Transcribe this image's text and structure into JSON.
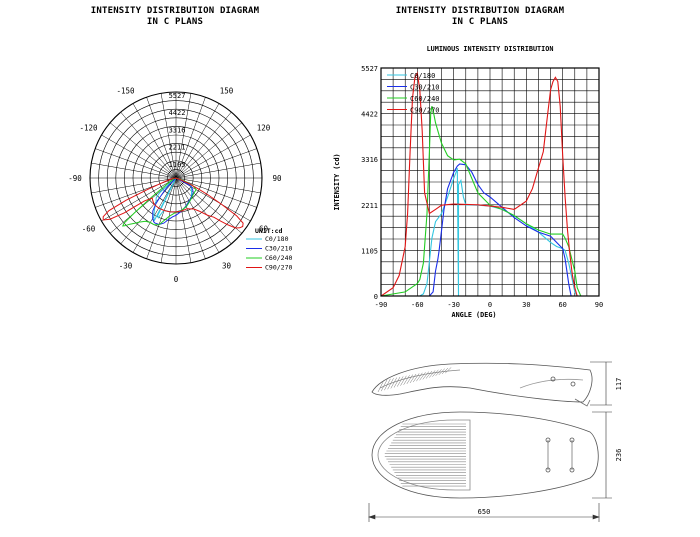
{
  "left_panel": {
    "title_line1": "INTENSITY DISTRIBUTION DIAGRAM",
    "title_line2": "IN C PLANS"
  },
  "right_panel": {
    "title_line1": "INTENSITY DISTRIBUTION DIAGRAM",
    "title_line2": "IN C PLANS"
  },
  "chart_data": [
    {
      "type": "polar",
      "unit_label": "UNIT:cd",
      "radial_ticks": [
        "5527",
        "4422",
        "3316",
        "2211",
        "1105"
      ],
      "radial_values": [
        5527,
        4422,
        3316,
        2211,
        1105
      ],
      "radial_max": 5527,
      "angle_labels": [
        {
          "text": "-150",
          "deg": -150
        },
        {
          "text": "150",
          "deg": 150
        },
        {
          "text": "-120",
          "deg": -120
        },
        {
          "text": "120",
          "deg": 120
        },
        {
          "text": "-90",
          "deg": -90
        },
        {
          "text": "90",
          "deg": 90
        },
        {
          "text": "-60",
          "deg": -60
        },
        {
          "text": "60",
          "deg": 60
        },
        {
          "text": "-30",
          "deg": -30
        },
        {
          "text": "30",
          "deg": 30
        },
        {
          "text": "0",
          "deg": 0
        }
      ],
      "legend": [
        {
          "name": "C0/180",
          "color": "#33c6e0"
        },
        {
          "name": "C30/210",
          "color": "#1a2ee8"
        },
        {
          "name": "C60/240",
          "color": "#22cc22"
        },
        {
          "name": "C90/270",
          "color": "#e01515"
        }
      ]
    },
    {
      "type": "line",
      "title": "LUMINOUS INTENSITY DISTRIBUTION",
      "xlabel": "ANGLE (DEG)",
      "ylabel": "INTENSITY (cd)",
      "xlim": [
        -90,
        90
      ],
      "ylim": [
        0,
        5527
      ],
      "xticks": [
        -90,
        -60,
        -30,
        0,
        30,
        60,
        90
      ],
      "yticks": [
        0,
        1105,
        2211,
        3316,
        4422,
        5527
      ],
      "grid": true,
      "legend_position": "top-left",
      "series": [
        {
          "name": "C0/180",
          "color": "#33c6e0",
          "points": [
            [
              -90,
              0
            ],
            [
              -58,
              0
            ],
            [
              -55,
              50
            ],
            [
              -52,
              300
            ],
            [
              -48,
              1400
            ],
            [
              -45,
              1800
            ],
            [
              -40,
              2000
            ],
            [
              -35,
              2400
            ],
            [
              -30,
              2850
            ],
            [
              -28,
              3000
            ],
            [
              -27,
              3100
            ],
            [
              -26,
              0
            ],
            [
              -26,
              2700
            ],
            [
              -24,
              2800
            ],
            [
              -22,
              2400
            ],
            [
              -20,
              2211
            ],
            [
              -10,
              2200
            ],
            [
              0,
              2180
            ],
            [
              10,
              2100
            ],
            [
              20,
              1950
            ],
            [
              30,
              1750
            ],
            [
              40,
              1550
            ],
            [
              50,
              1300
            ],
            [
              55,
              1200
            ],
            [
              60,
              1150
            ],
            [
              62,
              1105
            ],
            [
              65,
              800
            ],
            [
              70,
              100
            ],
            [
              72,
              0
            ],
            [
              90,
              0
            ]
          ]
        },
        {
          "name": "C30/210",
          "color": "#1a2ee8",
          "points": [
            [
              -90,
              0
            ],
            [
              -50,
              0
            ],
            [
              -47,
              100
            ],
            [
              -45,
              600
            ],
            [
              -43,
              900
            ],
            [
              -42,
              1100
            ],
            [
              -40,
              1600
            ],
            [
              -38,
              2100
            ],
            [
              -35,
              2600
            ],
            [
              -30,
              3000
            ],
            [
              -27,
              3150
            ],
            [
              -25,
              3200
            ],
            [
              -20,
              3180
            ],
            [
              -15,
              3000
            ],
            [
              -10,
              2700
            ],
            [
              -5,
              2500
            ],
            [
              0,
              2400
            ],
            [
              10,
              2150
            ],
            [
              20,
              1900
            ],
            [
              30,
              1700
            ],
            [
              40,
              1550
            ],
            [
              50,
              1450
            ],
            [
              55,
              1300
            ],
            [
              60,
              1150
            ],
            [
              62,
              900
            ],
            [
              65,
              300
            ],
            [
              67,
              0
            ],
            [
              90,
              0
            ]
          ]
        },
        {
          "name": "C60/240",
          "color": "#22cc22",
          "points": [
            [
              -90,
              0
            ],
            [
              -70,
              100
            ],
            [
              -65,
              200
            ],
            [
              -60,
              300
            ],
            [
              -58,
              400
            ],
            [
              -55,
              800
            ],
            [
              -52,
              2000
            ],
            [
              -50,
              3500
            ],
            [
              -49,
              4422
            ],
            [
              -48,
              4600
            ],
            [
              -47,
              4500
            ],
            [
              -45,
              4200
            ],
            [
              -42,
              3900
            ],
            [
              -40,
              3700
            ],
            [
              -35,
              3400
            ],
            [
              -30,
              3300
            ],
            [
              -25,
              3316
            ],
            [
              -20,
              3200
            ],
            [
              -10,
              2500
            ],
            [
              0,
              2200
            ],
            [
              10,
              2100
            ],
            [
              20,
              1950
            ],
            [
              30,
              1750
            ],
            [
              40,
              1600
            ],
            [
              50,
              1500
            ],
            [
              60,
              1500
            ],
            [
              62,
              1400
            ],
            [
              65,
              1200
            ],
            [
              70,
              600
            ],
            [
              72,
              200
            ],
            [
              75,
              0
            ],
            [
              90,
              0
            ]
          ]
        },
        {
          "name": "C90/270",
          "color": "#e01515",
          "points": [
            [
              -90,
              0
            ],
            [
              -80,
              200
            ],
            [
              -75,
              500
            ],
            [
              -70,
              1200
            ],
            [
              -68,
              2000
            ],
            [
              -66,
              3500
            ],
            [
              -64,
              4800
            ],
            [
              -62,
              5300
            ],
            [
              -60,
              5400
            ],
            [
              -58,
              5000
            ],
            [
              -56,
              4000
            ],
            [
              -54,
              2500
            ],
            [
              -50,
              2000
            ],
            [
              -45,
              2100
            ],
            [
              -40,
              2200
            ],
            [
              -30,
              2230
            ],
            [
              -20,
              2220
            ],
            [
              -10,
              2211
            ],
            [
              0,
              2180
            ],
            [
              10,
              2150
            ],
            [
              20,
              2100
            ],
            [
              30,
              2300
            ],
            [
              35,
              2600
            ],
            [
              40,
              3100
            ],
            [
              42,
              3300
            ],
            [
              44,
              3500
            ],
            [
              46,
              4000
            ],
            [
              48,
              4500
            ],
            [
              50,
              5000
            ],
            [
              52,
              5200
            ],
            [
              54,
              5300
            ],
            [
              56,
              5200
            ],
            [
              58,
              4600
            ],
            [
              60,
              3400
            ],
            [
              62,
              2400
            ],
            [
              64,
              1600
            ],
            [
              66,
              1000
            ],
            [
              68,
              500
            ],
            [
              70,
              200
            ],
            [
              72,
              0
            ],
            [
              90,
              0
            ]
          ]
        }
      ]
    }
  ],
  "dimensions": {
    "height_side": "117",
    "width_top": "236",
    "length": "650"
  }
}
